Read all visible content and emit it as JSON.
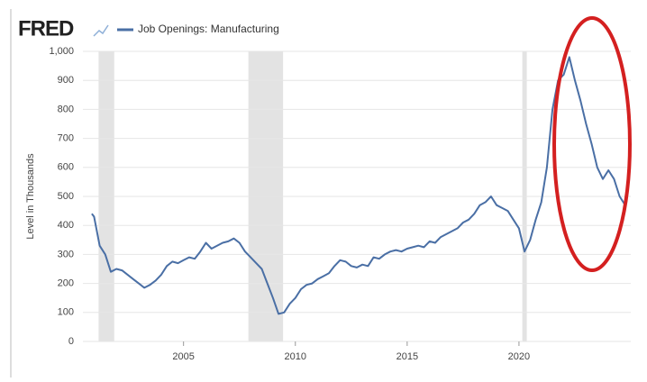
{
  "chart_data": {
    "type": "line",
    "logo": "FRED",
    "ylabel": "Level in Thousands",
    "x": [
      2000.9,
      2001.0,
      2001.25,
      2001.5,
      2001.75,
      2002.0,
      2002.25,
      2002.5,
      2002.75,
      2003.0,
      2003.25,
      2003.5,
      2003.75,
      2004.0,
      2004.25,
      2004.5,
      2004.75,
      2005.0,
      2005.25,
      2005.5,
      2005.75,
      2006.0,
      2006.25,
      2006.5,
      2006.75,
      2007.0,
      2007.25,
      2007.5,
      2007.75,
      2008.0,
      2008.25,
      2008.5,
      2008.75,
      2009.0,
      2009.25,
      2009.5,
      2009.75,
      2010.0,
      2010.25,
      2010.5,
      2010.75,
      2011.0,
      2011.25,
      2011.5,
      2011.75,
      2012.0,
      2012.25,
      2012.5,
      2012.75,
      2013.0,
      2013.25,
      2013.5,
      2013.75,
      2014.0,
      2014.25,
      2014.5,
      2014.75,
      2015.0,
      2015.25,
      2015.5,
      2015.75,
      2016.0,
      2016.25,
      2016.5,
      2016.75,
      2017.0,
      2017.25,
      2017.5,
      2017.75,
      2018.0,
      2018.25,
      2018.5,
      2018.75,
      2019.0,
      2019.25,
      2019.5,
      2019.75,
      2020.0,
      2020.25,
      2020.5,
      2020.75,
      2021.0,
      2021.25,
      2021.5,
      2021.75,
      2022.0,
      2022.25,
      2022.5,
      2022.75,
      2023.0,
      2023.25,
      2023.5,
      2023.75,
      2024.0,
      2024.25,
      2024.5,
      2024.75
    ],
    "series": [
      {
        "name": "Job Openings: Manufacturing",
        "color": "#4a6fa5",
        "values": [
          440,
          430,
          330,
          300,
          240,
          250,
          245,
          230,
          215,
          200,
          185,
          195,
          210,
          230,
          260,
          275,
          270,
          280,
          290,
          285,
          310,
          340,
          320,
          330,
          340,
          345,
          355,
          340,
          310,
          290,
          270,
          250,
          200,
          150,
          95,
          100,
          130,
          150,
          180,
          195,
          200,
          215,
          225,
          235,
          260,
          280,
          275,
          260,
          255,
          265,
          260,
          290,
          285,
          300,
          310,
          315,
          310,
          320,
          325,
          330,
          325,
          345,
          340,
          360,
          370,
          380,
          390,
          410,
          420,
          440,
          470,
          480,
          500,
          470,
          460,
          450,
          420,
          390,
          310,
          350,
          420,
          480,
          600,
          800,
          900,
          920,
          980,
          900,
          830,
          750,
          680,
          600,
          560,
          590,
          560,
          500,
          470
        ]
      }
    ],
    "recessions": [
      [
        2001.2,
        2001.9
      ],
      [
        2007.9,
        2009.45
      ],
      [
        2020.15,
        2020.35
      ]
    ],
    "xlim": [
      2000.5,
      2025.0
    ],
    "xticks": [
      2005,
      2010,
      2015,
      2020
    ],
    "ylim": [
      0,
      1000
    ],
    "yticks": [
      0,
      100,
      200,
      300,
      400,
      500,
      600,
      700,
      800,
      900,
      {
        "value": 1000,
        "label": "1,000"
      }
    ],
    "grid": true
  }
}
